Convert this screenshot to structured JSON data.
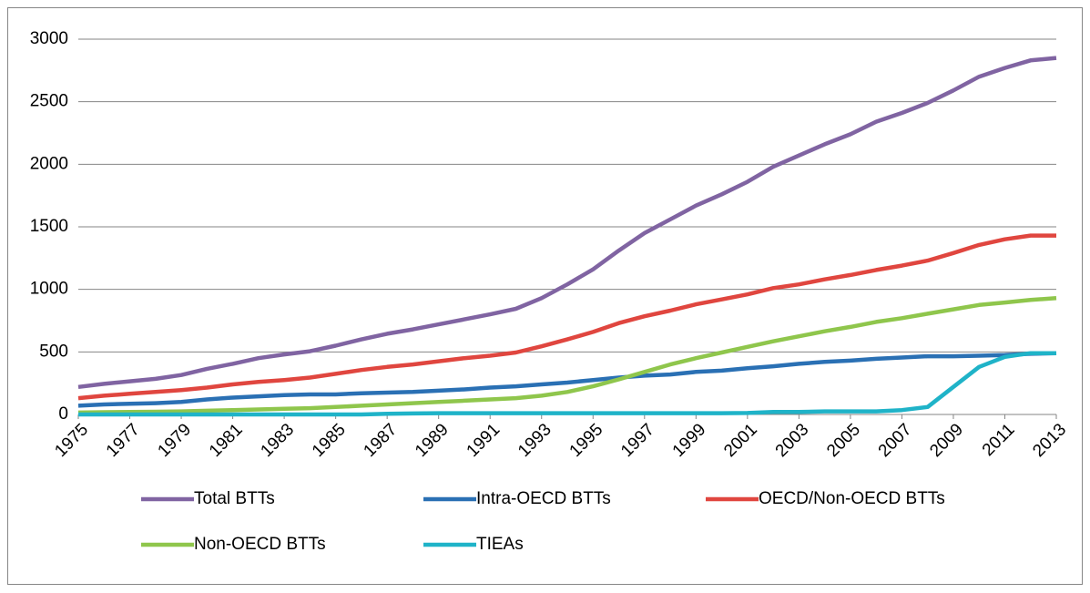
{
  "chart_data": {
    "type": "line",
    "x": [
      1975,
      1976,
      1977,
      1978,
      1979,
      1980,
      1981,
      1982,
      1983,
      1984,
      1985,
      1986,
      1987,
      1988,
      1989,
      1990,
      1991,
      1992,
      1993,
      1994,
      1995,
      1996,
      1997,
      1998,
      1999,
      2000,
      2001,
      2002,
      2003,
      2004,
      2005,
      2006,
      2007,
      2008,
      2009,
      2010,
      2011,
      2012,
      2013
    ],
    "xlim": [
      1975,
      2013
    ],
    "xticks": [
      1975,
      1977,
      1979,
      1981,
      1983,
      1985,
      1987,
      1989,
      1991,
      1993,
      1995,
      1997,
      1999,
      2001,
      2003,
      2005,
      2007,
      2009,
      2011,
      2013
    ],
    "ylim": [
      0,
      3000
    ],
    "yticks": [
      0,
      500,
      1000,
      1500,
      2000,
      2500,
      3000
    ],
    "grid": true,
    "legend": "bottom",
    "series": [
      {
        "name": "Total BTTs",
        "color": "#8064a2",
        "values": [
          220,
          245,
          265,
          285,
          315,
          365,
          405,
          450,
          480,
          505,
          550,
          600,
          645,
          680,
          720,
          760,
          800,
          845,
          930,
          1040,
          1160,
          1310,
          1450,
          1560,
          1670,
          1760,
          1860,
          1980,
          2070,
          2160,
          2240,
          2340,
          2410,
          2490,
          2590,
          2700,
          2770,
          2830,
          2850
        ]
      },
      {
        "name": "Intra-OECD BTTs",
        "color": "#2a70b4",
        "values": [
          70,
          80,
          85,
          90,
          100,
          120,
          135,
          145,
          155,
          160,
          160,
          170,
          175,
          180,
          190,
          200,
          215,
          225,
          240,
          255,
          275,
          295,
          310,
          320,
          340,
          350,
          370,
          385,
          405,
          420,
          430,
          445,
          455,
          465,
          465,
          470,
          475,
          485,
          490
        ]
      },
      {
        "name": "OECD/Non-OECD BTTs",
        "color": "#e0463f",
        "values": [
          130,
          150,
          165,
          180,
          195,
          215,
          240,
          260,
          275,
          295,
          325,
          355,
          380,
          400,
          425,
          450,
          470,
          495,
          545,
          600,
          660,
          730,
          785,
          830,
          880,
          920,
          960,
          1010,
          1040,
          1080,
          1115,
          1155,
          1190,
          1230,
          1290,
          1355,
          1400,
          1430,
          1430
        ]
      },
      {
        "name": "Non-OECD BTTs",
        "color": "#8fc64c",
        "values": [
          15,
          18,
          20,
          22,
          25,
          30,
          35,
          40,
          45,
          50,
          60,
          70,
          80,
          90,
          100,
          110,
          120,
          130,
          150,
          180,
          225,
          280,
          340,
          400,
          450,
          495,
          540,
          585,
          625,
          665,
          700,
          740,
          770,
          805,
          840,
          875,
          895,
          915,
          930
        ]
      },
      {
        "name": "TIEAs",
        "color": "#1fb3c8",
        "values": [
          0,
          0,
          0,
          0,
          0,
          0,
          0,
          0,
          0,
          0,
          0,
          0,
          5,
          8,
          10,
          10,
          10,
          10,
          10,
          10,
          10,
          10,
          10,
          10,
          10,
          10,
          12,
          20,
          20,
          25,
          25,
          25,
          35,
          60,
          220,
          380,
          460,
          490,
          490
        ]
      }
    ]
  }
}
